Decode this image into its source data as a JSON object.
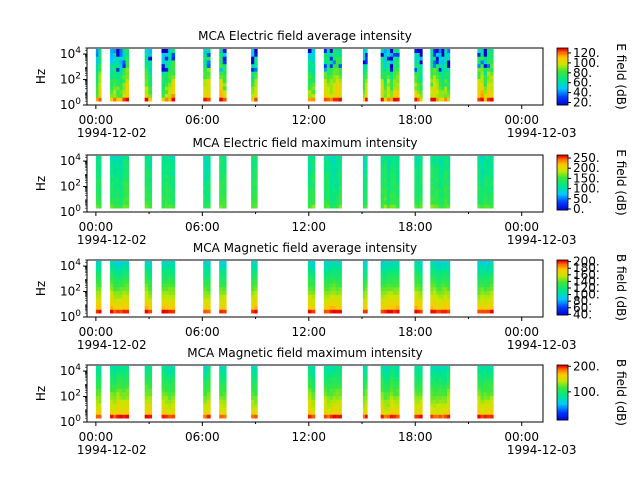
{
  "figure": {
    "time_labels": [
      "00:00",
      "06:00",
      "12:00",
      "18:00",
      "00:00"
    ],
    "start_date": "1994-12-02",
    "end_date": "1994-12-03",
    "ylabel": "Hz",
    "ytick_labels": [
      "10^0",
      "10^2",
      "10^4"
    ]
  },
  "chart_data": [
    {
      "type": "heatmap",
      "title": "MCA  Electric field average intensity",
      "ylabel": "Hz",
      "y_scale": "log",
      "ylim": [
        1,
        30000
      ],
      "colorbar_label": "E field (dB)",
      "colorbar_ticks": [
        "20.",
        "40.",
        "60.",
        "80.",
        "100.",
        "120."
      ],
      "colorbar_range": [
        15,
        130
      ],
      "colormap": "rainbow",
      "x_range_hours": [
        -0.5,
        25.2
      ],
      "data_intervals_hours": [
        [
          0.0,
          0.3
        ],
        [
          0.8,
          1.85
        ],
        [
          2.75,
          3.15
        ],
        [
          3.7,
          4.45
        ],
        [
          6.05,
          6.45
        ],
        [
          6.95,
          7.35
        ],
        [
          8.75,
          9.1
        ],
        [
          11.95,
          12.35
        ],
        [
          12.85,
          13.85
        ],
        [
          15.05,
          15.3
        ],
        [
          16.05,
          17.1
        ],
        [
          17.95,
          18.4
        ],
        [
          18.85,
          19.95
        ],
        [
          21.5,
          22.4
        ]
      ]
    },
    {
      "type": "heatmap",
      "title": "MCA  Electric field maximum intensity",
      "ylabel": "Hz",
      "y_scale": "log",
      "ylim": [
        1,
        30000
      ],
      "colorbar_label": "E field (dB)",
      "colorbar_ticks": [
        "0.",
        "50.",
        "100.",
        "150.",
        "200.",
        "250."
      ],
      "colorbar_range": [
        -5,
        265
      ],
      "colormap": "rainbow",
      "x_range_hours": [
        -0.5,
        25.2
      ],
      "data_intervals_hours": [
        [
          0.0,
          0.3
        ],
        [
          0.8,
          1.85
        ],
        [
          2.75,
          3.15
        ],
        [
          3.7,
          4.45
        ],
        [
          6.05,
          6.45
        ],
        [
          6.95,
          7.35
        ],
        [
          8.75,
          9.1
        ],
        [
          11.95,
          12.35
        ],
        [
          12.85,
          13.85
        ],
        [
          15.05,
          15.3
        ],
        [
          16.05,
          17.1
        ],
        [
          17.95,
          18.4
        ],
        [
          18.85,
          19.95
        ],
        [
          21.5,
          22.4
        ]
      ]
    },
    {
      "type": "heatmap",
      "title": "MCA  Magnetic field average intensity",
      "ylabel": "Hz",
      "y_scale": "log",
      "ylim": [
        1,
        30000
      ],
      "colorbar_label": "B field (dB)",
      "colorbar_ticks": [
        "40.",
        "60.",
        "80.",
        "100.",
        "120.",
        "140.",
        "160.",
        "180.",
        "200."
      ],
      "colorbar_range": [
        38,
        205
      ],
      "colormap": "rainbow",
      "x_range_hours": [
        -0.5,
        25.2
      ],
      "data_intervals_hours": [
        [
          0.0,
          0.3
        ],
        [
          0.8,
          1.85
        ],
        [
          2.75,
          3.15
        ],
        [
          3.7,
          4.45
        ],
        [
          6.05,
          6.45
        ],
        [
          6.95,
          7.35
        ],
        [
          8.75,
          9.1
        ],
        [
          11.95,
          12.35
        ],
        [
          12.85,
          13.85
        ],
        [
          15.05,
          15.3
        ],
        [
          16.05,
          17.1
        ],
        [
          17.95,
          18.4
        ],
        [
          18.85,
          19.95
        ],
        [
          21.5,
          22.4
        ]
      ]
    },
    {
      "type": "heatmap",
      "title": "MCA  Magnetic field maximum intensity",
      "ylabel": "Hz",
      "y_scale": "log",
      "ylim": [
        1,
        30000
      ],
      "colorbar_label": "B field (dB)",
      "colorbar_ticks": [
        "100.",
        "200."
      ],
      "colorbar_range": [
        -10,
        205
      ],
      "colormap": "rainbow",
      "x_range_hours": [
        -0.5,
        25.2
      ],
      "data_intervals_hours": [
        [
          0.0,
          0.3
        ],
        [
          0.8,
          1.85
        ],
        [
          2.75,
          3.15
        ],
        [
          3.7,
          4.45
        ],
        [
          6.05,
          6.45
        ],
        [
          6.95,
          7.35
        ],
        [
          8.75,
          9.1
        ],
        [
          11.95,
          12.35
        ],
        [
          12.85,
          13.85
        ],
        [
          15.05,
          15.3
        ],
        [
          16.05,
          17.1
        ],
        [
          17.95,
          18.4
        ],
        [
          18.85,
          19.95
        ],
        [
          21.5,
          22.4
        ]
      ]
    }
  ]
}
